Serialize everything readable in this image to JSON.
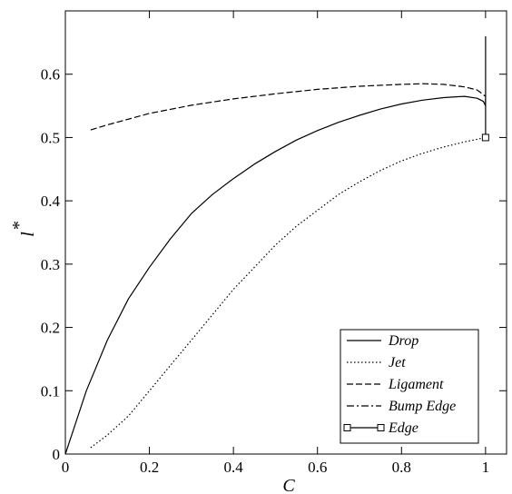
{
  "chart_data": {
    "type": "line",
    "xlabel": "C",
    "ylabel": "l",
    "ylabel_superscript": "*",
    "xlim": [
      0,
      1.05
    ],
    "ylim": [
      0,
      0.7
    ],
    "x_ticks": [
      0,
      0.2,
      0.4,
      0.6,
      0.8,
      1
    ],
    "x_tick_labels": [
      "0",
      "0.2",
      "0.4",
      "0.6",
      "0.8",
      "1"
    ],
    "y_ticks": [
      0,
      0.1,
      0.2,
      0.3,
      0.4,
      0.5,
      0.6
    ],
    "y_tick_labels": [
      "0",
      "0.1",
      "0.2",
      "0.3",
      "0.4",
      "0.5",
      "0.6"
    ],
    "grid": false,
    "legend_position": "bottom-right",
    "series": [
      {
        "name": "Drop",
        "style": "solid",
        "x": [
          0.0,
          0.02,
          0.05,
          0.1,
          0.15,
          0.2,
          0.25,
          0.3,
          0.35,
          0.4,
          0.45,
          0.5,
          0.55,
          0.6,
          0.65,
          0.7,
          0.75,
          0.8,
          0.85,
          0.9,
          0.95,
          0.98,
          0.995,
          1.0
        ],
        "y": [
          0.0,
          0.04,
          0.1,
          0.18,
          0.245,
          0.295,
          0.34,
          0.38,
          0.41,
          0.435,
          0.458,
          0.478,
          0.496,
          0.511,
          0.524,
          0.535,
          0.545,
          0.553,
          0.559,
          0.563,
          0.565,
          0.562,
          0.557,
          0.55
        ]
      },
      {
        "name": "Jet",
        "style": "dotted",
        "x": [
          0.06,
          0.1,
          0.15,
          0.2,
          0.25,
          0.3,
          0.35,
          0.4,
          0.45,
          0.5,
          0.55,
          0.6,
          0.65,
          0.7,
          0.75,
          0.8,
          0.85,
          0.9,
          0.95,
          1.0
        ],
        "y": [
          0.01,
          0.03,
          0.06,
          0.1,
          0.14,
          0.18,
          0.22,
          0.26,
          0.295,
          0.33,
          0.36,
          0.385,
          0.41,
          0.43,
          0.448,
          0.463,
          0.475,
          0.485,
          0.493,
          0.5
        ]
      },
      {
        "name": "Ligament",
        "style": "dashed",
        "x": [
          0.06,
          0.1,
          0.2,
          0.3,
          0.4,
          0.5,
          0.6,
          0.7,
          0.8,
          0.85,
          0.9,
          0.95,
          0.98,
          1.0
        ],
        "y": [
          0.512,
          0.52,
          0.538,
          0.551,
          0.561,
          0.569,
          0.576,
          0.581,
          0.584,
          0.585,
          0.584,
          0.58,
          0.575,
          0.565
        ]
      },
      {
        "name": "Bump Edge",
        "style": "dashdot",
        "x": [
          1.0,
          1.0
        ],
        "y": [
          0.55,
          0.565
        ]
      },
      {
        "name": "Edge",
        "style": "solid-square-marker",
        "x": [
          1.0,
          1.0
        ],
        "y": [
          0.5,
          0.66
        ]
      }
    ]
  }
}
